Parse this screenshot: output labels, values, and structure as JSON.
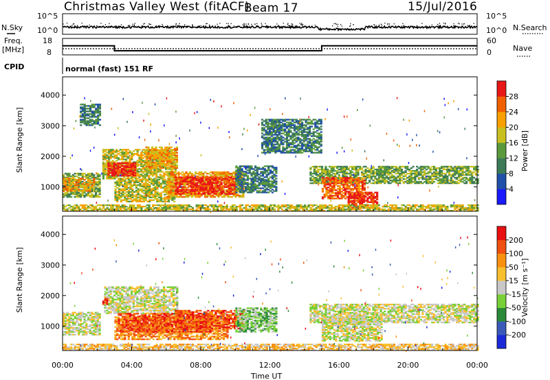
{
  "header": {
    "station": "Christmas Valley West (fitACF)",
    "beam": "Beam 17",
    "date": "15/Jul/2016"
  },
  "top_panels": {
    "nsky_label": "N.Sky",
    "nsky_top": "10^5",
    "nsky_bottom": "10^0",
    "nsearch_label": "N.Search",
    "nsearch_top": "10^5",
    "nsearch_bottom": "10^0",
    "freq_label_1": "Freq.",
    "freq_label_2": "[MHz]",
    "freq_top": "18",
    "freq_bottom": "8",
    "nave_label": "Nave",
    "nave_top": "60",
    "nave_bottom": "0",
    "cpid_label": "CPID",
    "cpid_value": "normal (fast) 151 RF"
  },
  "chart_data": [
    {
      "type": "heatmap",
      "name": "power",
      "ylabel": "Slant Range [km]",
      "y_ticks": [
        "1000",
        "2000",
        "3000",
        "4000"
      ],
      "ylim": [
        200,
        4600
      ],
      "xlim": [
        0,
        24
      ],
      "colorbar_label": "Power [dB]",
      "colorbar_ticks": [
        "4",
        "8",
        "12",
        "16",
        "20",
        "24",
        "28"
      ],
      "colors": [
        "#1a1aff",
        "#2050a8",
        "#3c7a58",
        "#5a9a3c",
        "#c8c020",
        "#f8a000",
        "#f06000",
        "#e81818"
      ],
      "patches": [
        {
          "t0": 0.0,
          "t1": 2.2,
          "r0": 650,
          "r1": 1450,
          "level": 3
        },
        {
          "t0": 0.0,
          "t1": 1.8,
          "r0": 850,
          "r1": 1300,
          "level": 5
        },
        {
          "t0": 2.3,
          "t1": 6.5,
          "r0": 1250,
          "r1": 2200,
          "level": 4
        },
        {
          "t0": 2.6,
          "t1": 4.2,
          "r0": 1350,
          "r1": 1800,
          "level": 7
        },
        {
          "t0": 4.8,
          "t1": 6.6,
          "r0": 1600,
          "r1": 2300,
          "level": 5
        },
        {
          "t0": 3.0,
          "t1": 6.5,
          "r0": 500,
          "r1": 1250,
          "level": 4
        },
        {
          "t0": 6.0,
          "t1": 10.5,
          "r0": 650,
          "r1": 1500,
          "level": 5
        },
        {
          "t0": 6.5,
          "t1": 10.0,
          "r0": 750,
          "r1": 1300,
          "level": 7
        },
        {
          "t0": 10.0,
          "t1": 12.4,
          "r0": 800,
          "r1": 1700,
          "level": 2
        },
        {
          "t0": 1.0,
          "t1": 2.2,
          "r0": 3000,
          "r1": 3700,
          "level": 2
        },
        {
          "t0": 14.3,
          "t1": 24.0,
          "r0": 1100,
          "r1": 1650,
          "level": 3
        },
        {
          "t0": 15.0,
          "t1": 17.5,
          "r0": 600,
          "r1": 1300,
          "level": 6
        },
        {
          "t0": 16.5,
          "t1": 18.2,
          "r0": 300,
          "r1": 800,
          "level": 7
        },
        {
          "t0": 11.5,
          "t1": 15.0,
          "r0": 2100,
          "r1": 3200,
          "level": 2
        },
        {
          "t0": 0.0,
          "t1": 24.0,
          "r0": 200,
          "r1": 400,
          "level": 4
        }
      ]
    },
    {
      "type": "heatmap",
      "name": "velocity",
      "ylabel": "Slant Range [km]",
      "y_ticks": [
        "1000",
        "2000",
        "3000",
        "4000"
      ],
      "ylim": [
        200,
        4600
      ],
      "xlim": [
        0,
        24
      ],
      "colorbar_label": "Velocity [m s⁻¹]",
      "colorbar_ticks": [
        "200",
        "100",
        "50",
        "15",
        "-15",
        "-50",
        "-100",
        "-200"
      ],
      "colors": [
        "#1a2ad8",
        "#3a5ab8",
        "#2a8a3a",
        "#78d038",
        "#c8c8c8",
        "#f8c030",
        "#f89010",
        "#f05010",
        "#e81010"
      ],
      "patches": [
        {
          "t0": 0.0,
          "t1": 2.2,
          "r0": 700,
          "r1": 1450,
          "level": 4
        },
        {
          "t0": 2.4,
          "t1": 6.6,
          "r0": 1400,
          "r1": 2300,
          "level": 4
        },
        {
          "t0": 3.0,
          "t1": 9.5,
          "r0": 550,
          "r1": 1300,
          "level": 6
        },
        {
          "t0": 3.2,
          "t1": 8.5,
          "r0": 800,
          "r1": 1400,
          "level": 7
        },
        {
          "t0": 6.5,
          "t1": 10.5,
          "r0": 900,
          "r1": 1500,
          "level": 7
        },
        {
          "t0": 10.0,
          "t1": 12.4,
          "r0": 800,
          "r1": 1600,
          "level": 3
        },
        {
          "t0": 14.3,
          "t1": 24.0,
          "r0": 1100,
          "r1": 1700,
          "level": 4
        },
        {
          "t0": 15.0,
          "t1": 18.5,
          "r0": 500,
          "r1": 1300,
          "level": 4
        },
        {
          "t0": 0.0,
          "t1": 24.0,
          "r0": 200,
          "r1": 400,
          "level": 5
        },
        {
          "t0": 2.3,
          "t1": 2.6,
          "r0": 1700,
          "r1": 1900,
          "level": 8
        }
      ]
    }
  ],
  "x_axis": {
    "ticks": [
      "00:00",
      "04:00",
      "08:00",
      "12:00",
      "16:00",
      "20:00",
      "00:00"
    ],
    "label": "Time UT"
  },
  "freq_series": {
    "times": [
      0.0,
      3.0,
      3.0,
      15.0,
      15.0,
      24.0
    ],
    "values": [
      13.5,
      13.5,
      10.5,
      10.5,
      13.5,
      13.5
    ]
  }
}
